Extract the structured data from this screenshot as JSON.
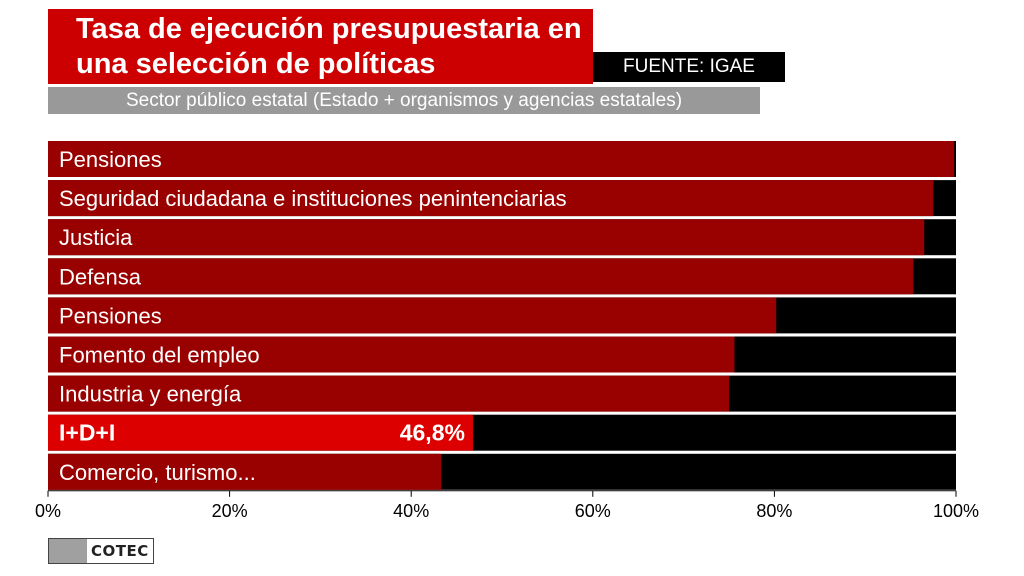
{
  "title": "Tasa de ejecución presupuestaria en una selección de políticas",
  "source": "FUENTE: IGAE",
  "subtitle": "Sector público estatal (Estado + organismos y agencias estatales)",
  "logo_text": "COTEC",
  "colors": {
    "bar": "#990000",
    "highlight": "#dd0000",
    "remainder": "#000000",
    "title_bg": "#cc0000",
    "subtitle_bg": "#999999"
  },
  "chart_data": {
    "type": "bar",
    "orientation": "horizontal",
    "stacked_remainder_to": 100,
    "categories": [
      "Pensiones",
      "Seguridad ciudadana e instituciones penintenciarias",
      "Justicia",
      "Defensa",
      "Pensiones",
      "Fomento del empleo",
      "Industria y energía",
      "I+D+I",
      "Comercio, turismo..."
    ],
    "values": [
      99.8,
      97.5,
      96.5,
      95.3,
      80.2,
      75.6,
      75.0,
      46.8,
      43.3
    ],
    "highlight_index": 7,
    "highlight_label": "46,8%",
    "xlim": [
      0,
      100
    ],
    "xticks": [
      "0%",
      "20%",
      "40%",
      "60%",
      "80%",
      "100%"
    ],
    "grid": false,
    "legend": "none"
  }
}
